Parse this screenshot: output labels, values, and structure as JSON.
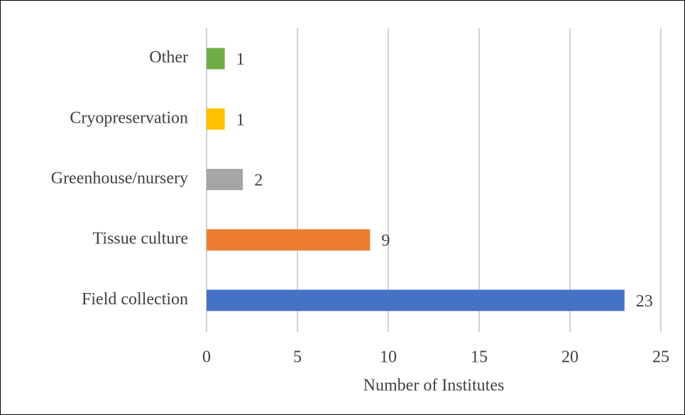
{
  "chart_data": {
    "type": "hbar",
    "categories": [
      "Other",
      "Cryopreservation",
      "Greenhouse/nursery",
      "Tissue culture",
      "Field collection"
    ],
    "values": [
      1,
      1,
      2,
      9,
      23
    ],
    "colors": [
      "#70ad47",
      "#ffc000",
      "#a5a5a5",
      "#ed7d31",
      "#4472c4"
    ],
    "xlabel": "Number of Institutes",
    "xlim": [
      0,
      25
    ],
    "xticks": [
      0,
      5,
      10,
      15,
      20,
      25
    ],
    "grid": true
  }
}
